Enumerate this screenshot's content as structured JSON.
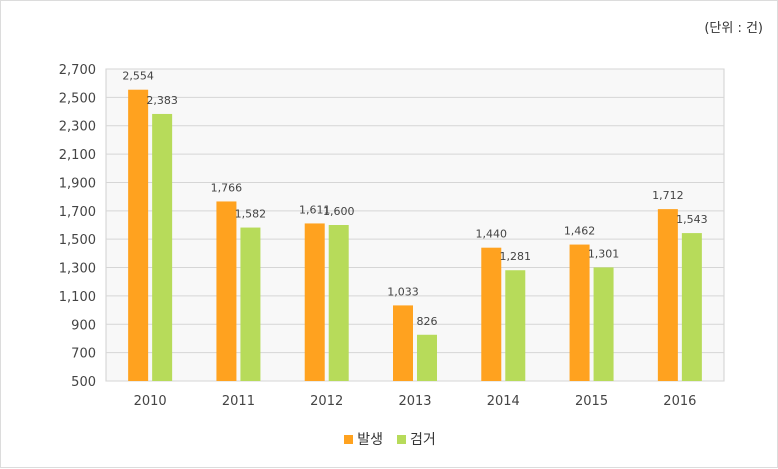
{
  "unit_label": "(단위 : 건)",
  "colors": {
    "series1": "#FFA21F",
    "series2": "#B7DB5A",
    "grid": "#d6d6d6",
    "plot_bg": "#f8f8f8"
  },
  "chart_data": {
    "type": "bar",
    "categories": [
      "2010",
      "2011",
      "2012",
      "2013",
      "2014",
      "2015",
      "2016"
    ],
    "series": [
      {
        "name": "발생",
        "values": [
          2554,
          1766,
          1611,
          1033,
          1440,
          1462,
          1712
        ],
        "labels": [
          "2,554",
          "1,766",
          "1,611",
          "1,033",
          "1,440",
          "1,462",
          "1,712"
        ]
      },
      {
        "name": "검거",
        "values": [
          2383,
          1582,
          1600,
          826,
          1281,
          1301,
          1543
        ],
        "labels": [
          "2,383",
          "1,582",
          "1,600",
          "826",
          "1,281",
          "1,301",
          "1,543"
        ]
      }
    ],
    "ylim": [
      500,
      2700
    ],
    "yticks": [
      "500",
      "700",
      "900",
      "1,100",
      "1,300",
      "1,500",
      "1,700",
      "1,900",
      "2,100",
      "2,300",
      "2,500",
      "2,700"
    ],
    "grid": true,
    "legend_position": "bottom-center"
  }
}
